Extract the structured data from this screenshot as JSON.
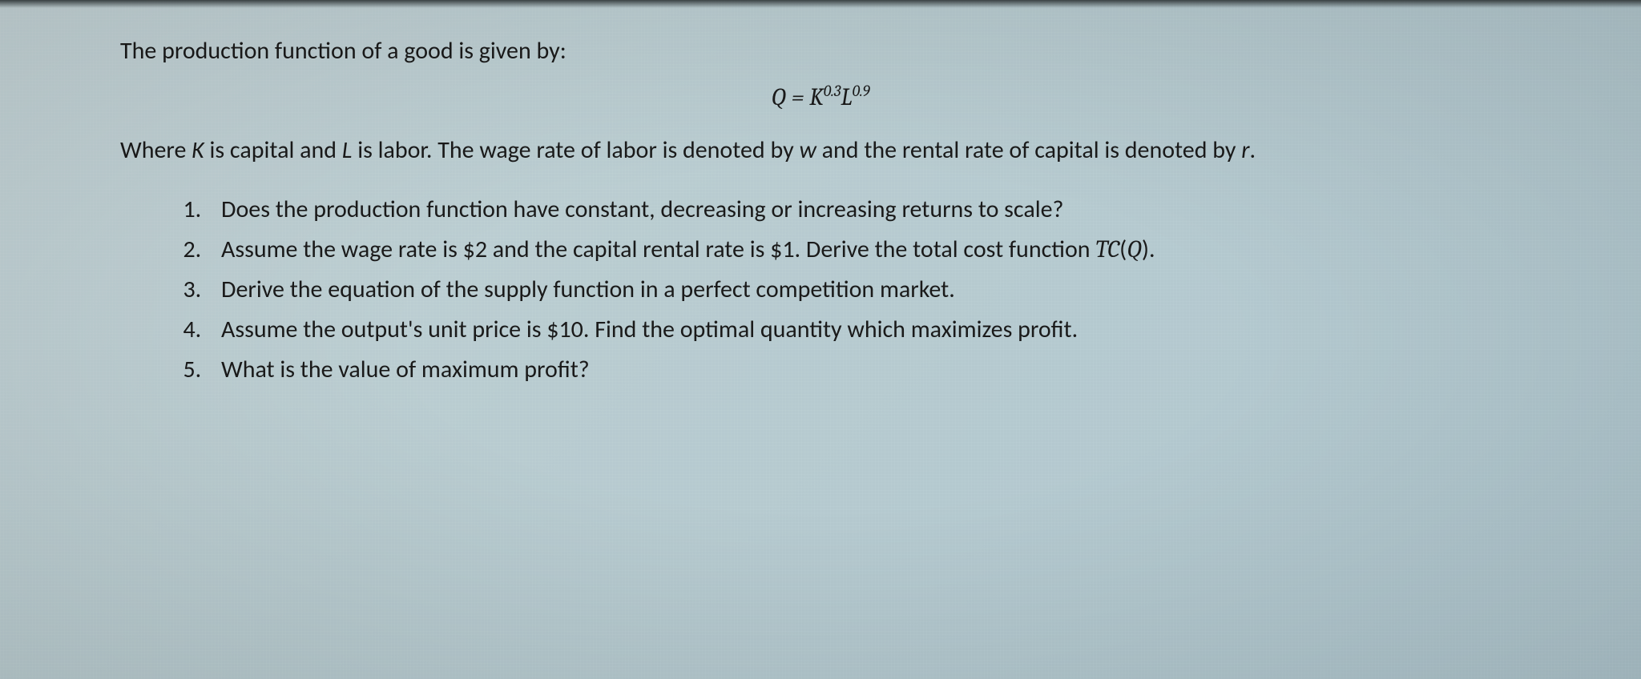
{
  "colors": {
    "background_gradient": [
      "#c5d5d8",
      "#b8cbd0",
      "#aec5cd"
    ],
    "text": "#1a1a1a",
    "vignette": "rgba(0,0,0,0.10)"
  },
  "typography": {
    "body_font": "Calibri, 'Segoe UI', Arial, sans-serif",
    "math_font": "Cambria, 'Times New Roman', serif",
    "body_fontsize_pt": 22,
    "line_height": 1.6
  },
  "intro": {
    "text": "The production function of a good is given by:"
  },
  "equation": {
    "lhs": "Q",
    "eq_sign": " = ",
    "rhs_base1": "K",
    "rhs_exp1": "0.3",
    "rhs_base2": "L",
    "rhs_exp2": "0.9"
  },
  "where": {
    "prefix": "Where ",
    "k_var": "K",
    "mid1": " is capital and ",
    "l_var": "L",
    "mid2": " is labor. The wage rate of labor is denoted by ",
    "w_var": "w",
    "mid3": " and the rental rate of capital is denoted by ",
    "r_var": "r",
    "suffix": "."
  },
  "questions": {
    "q1": "Does the production function have constant, decreasing or increasing returns to scale?",
    "q2_a": "Assume the wage rate is $2 and the capital rental rate is $1. Derive the total cost function ",
    "q2_tc": "TC",
    "q2_paren_open": "(",
    "q2_qvar": "Q",
    "q2_paren_close": ").",
    "q3": "Derive the equation of the supply function in a perfect competition market.",
    "q4": "Assume the output's unit price is $10. Find the optimal quantity which maximizes profit.",
    "q5": "What is the value of maximum profit?"
  }
}
